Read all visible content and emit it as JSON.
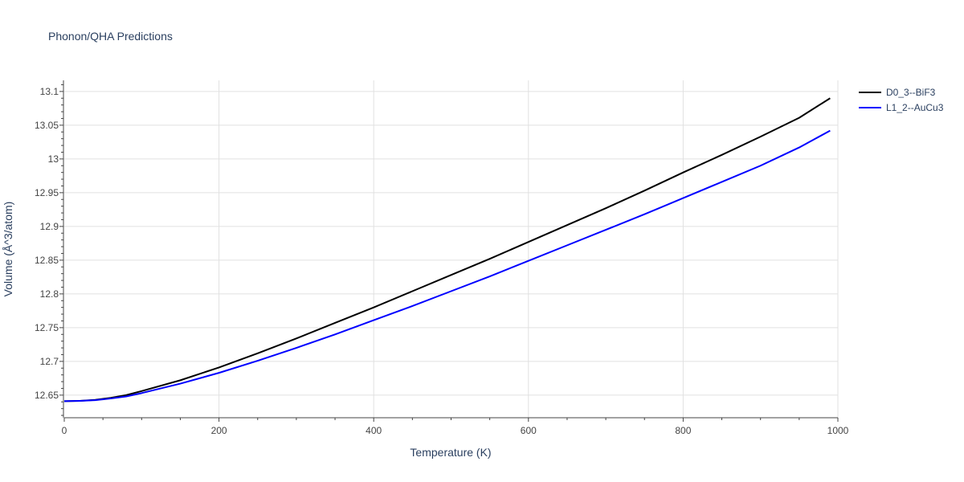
{
  "chart_data": {
    "type": "line",
    "title": "Phonon/QHA Predictions",
    "xlabel": "Temperature (K)",
    "ylabel": "Volume (Å^3/atom)",
    "xlim": [
      0,
      1000
    ],
    "ylim": [
      12.6165,
      13.1165
    ],
    "xticks": [
      0,
      200,
      400,
      600,
      800,
      1000
    ],
    "yticks": [
      12.65,
      12.7,
      12.75,
      12.8,
      12.85,
      12.9,
      12.95,
      13,
      13.05,
      13.1
    ],
    "xtick_labels": [
      "0",
      "200",
      "400",
      "600",
      "800",
      "1000"
    ],
    "ytick_labels": [
      "12.65",
      "12.7",
      "12.75",
      "12.8",
      "12.85",
      "12.9",
      "12.95",
      "13",
      "13.05",
      "13.1"
    ],
    "grid": true,
    "legend_position": "top-right",
    "series": [
      {
        "name": "D0_3--BiF3",
        "color": "#000000",
        "x": [
          0,
          20,
          40,
          60,
          80,
          100,
          150,
          200,
          250,
          300,
          350,
          400,
          450,
          500,
          550,
          600,
          650,
          700,
          750,
          800,
          850,
          900,
          950,
          990
        ],
        "y": [
          12.641,
          12.6415,
          12.643,
          12.646,
          12.65,
          12.656,
          12.672,
          12.691,
          12.712,
          12.734,
          12.757,
          12.78,
          12.804,
          12.828,
          12.852,
          12.877,
          12.902,
          12.927,
          12.953,
          12.98,
          13.006,
          13.033,
          13.061,
          13.09
        ]
      },
      {
        "name": "L1_2--AuCu3",
        "color": "#0000ff",
        "x": [
          0,
          20,
          40,
          60,
          80,
          100,
          150,
          200,
          250,
          300,
          350,
          400,
          450,
          500,
          550,
          600,
          650,
          700,
          750,
          800,
          850,
          900,
          950,
          990
        ],
        "y": [
          12.641,
          12.6415,
          12.6425,
          12.645,
          12.648,
          12.653,
          12.667,
          12.683,
          12.701,
          12.72,
          12.74,
          12.761,
          12.782,
          12.804,
          12.826,
          12.849,
          12.872,
          12.895,
          12.918,
          12.942,
          12.966,
          12.99,
          13.017,
          13.042
        ]
      }
    ]
  }
}
